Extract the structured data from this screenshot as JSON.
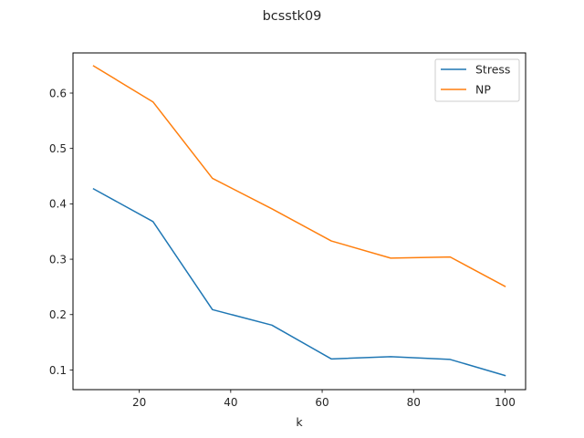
{
  "chart_data": {
    "type": "line",
    "title": "bcsstk09",
    "xlabel": "k",
    "ylabel": "",
    "xlim": [
      5.5,
      104.5
    ],
    "ylim": [
      0.0645,
      0.6725
    ],
    "xticks": [
      20,
      40,
      60,
      80,
      100
    ],
    "yticks": [
      0.1,
      0.2,
      0.3,
      0.4,
      0.5,
      0.6
    ],
    "grid": false,
    "legend_position": "top-right",
    "x": [
      10,
      23,
      36,
      49,
      62,
      75,
      88,
      100
    ],
    "series": [
      {
        "name": "Stress",
        "color": "#1f77b4",
        "values": [
          0.427,
          0.368,
          0.209,
          0.181,
          0.12,
          0.124,
          0.119,
          0.09
        ]
      },
      {
        "name": "NP",
        "color": "#ff7f0e",
        "values": [
          0.649,
          0.584,
          0.446,
          0.391,
          0.333,
          0.302,
          0.304,
          0.251
        ]
      }
    ]
  }
}
